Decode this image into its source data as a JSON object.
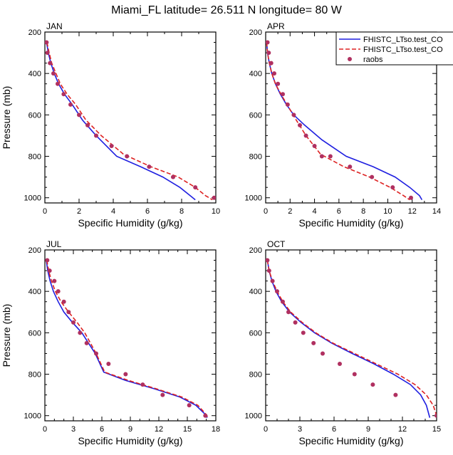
{
  "figure": {
    "title": "Miami_FL  latitude= 26.511 N longitude= 80 W",
    "ylabel": "Pressure (mb)",
    "xlabel": "Specific Humidity (g/kg)"
  },
  "legend": {
    "placement": "top-right of APR panel",
    "entries": [
      {
        "label": "FHISTC_LTso.test_CO",
        "color": "#1f1fe0",
        "style": "solid"
      },
      {
        "label": "FHISTC_LTso.test_CO",
        "color": "#dd2222",
        "style": "dashed"
      },
      {
        "label": "raobs",
        "color": "#b03060",
        "style": "dot"
      }
    ]
  },
  "colors": {
    "blue": "#1f1fe0",
    "red": "#dd2222",
    "obs": "#b03060"
  },
  "chart_data": [
    {
      "type": "line",
      "panel": "JAN",
      "xlim": [
        0,
        10
      ],
      "xticks": [
        0,
        2,
        4,
        6,
        8,
        10
      ],
      "ylim": [
        1025,
        200
      ],
      "yticks": [
        200,
        400,
        600,
        800,
        1000
      ],
      "series": [
        {
          "name": "FHISTC_LTso.test_CO (solid)",
          "x": [
            0.1,
            0.2,
            0.35,
            0.55,
            0.8,
            1.15,
            1.6,
            2.2,
            3.0,
            4.2,
            5.6,
            6.9,
            7.9,
            8.5,
            8.8
          ],
          "y": [
            250,
            300,
            350,
            400,
            450,
            500,
            550,
            625,
            700,
            800,
            850,
            900,
            950,
            990,
            1010
          ]
        },
        {
          "name": "FHISTC_LTso.test_CO (dashed)",
          "x": [
            0.12,
            0.25,
            0.4,
            0.65,
            0.9,
            1.3,
            1.8,
            2.4,
            3.3,
            4.6,
            6.2,
            7.8,
            8.8,
            9.4,
            9.8
          ],
          "y": [
            250,
            300,
            350,
            400,
            450,
            500,
            550,
            625,
            700,
            790,
            850,
            900,
            950,
            990,
            1010
          ]
        },
        {
          "name": "raobs",
          "x": [
            0.1,
            0.15,
            0.3,
            0.5,
            0.75,
            1.1,
            1.5,
            2.0,
            2.5,
            3.0,
            3.9,
            4.8,
            6.1,
            7.5,
            8.8,
            9.9
          ],
          "y": [
            250,
            300,
            350,
            400,
            450,
            500,
            550,
            600,
            650,
            700,
            750,
            800,
            850,
            900,
            950,
            1000
          ]
        }
      ]
    },
    {
      "type": "line",
      "panel": "APR",
      "xlim": [
        0,
        14
      ],
      "xticks": [
        0,
        2,
        4,
        6,
        8,
        10,
        12,
        14
      ],
      "ylim": [
        1025,
        200
      ],
      "yticks": [
        200,
        400,
        600,
        800,
        1000
      ],
      "series": [
        {
          "name": "FHISTC_LTso.test_CO (solid)",
          "x": [
            0.08,
            0.15,
            0.3,
            0.5,
            0.8,
            1.2,
            1.7,
            2.3,
            3.2,
            4.6,
            6.6,
            8.8,
            10.6,
            11.8,
            12.6,
            12.8
          ],
          "y": [
            250,
            300,
            350,
            400,
            450,
            500,
            550,
            600,
            650,
            720,
            800,
            850,
            900,
            950,
            990,
            1010
          ]
        },
        {
          "name": "FHISTC_LTso.test_CO (dashed)",
          "x": [
            0.08,
            0.15,
            0.3,
            0.5,
            0.8,
            1.25,
            1.75,
            2.5,
            3.3,
            4.5,
            6.4,
            8.5,
            10.2,
            11.3,
            11.8
          ],
          "y": [
            250,
            300,
            350,
            400,
            450,
            500,
            550,
            625,
            700,
            790,
            850,
            900,
            950,
            990,
            1010
          ]
        },
        {
          "name": "raobs",
          "x": [
            0.15,
            0.25,
            0.45,
            0.7,
            1.0,
            1.4,
            1.8,
            2.3,
            2.8,
            3.3,
            4.0,
            4.6,
            5.3,
            6.9,
            8.7,
            10.4,
            11.9
          ],
          "y": [
            250,
            300,
            350,
            400,
            450,
            500,
            550,
            600,
            650,
            700,
            750,
            800,
            800,
            850,
            900,
            950,
            1000
          ]
        }
      ]
    },
    {
      "type": "line",
      "panel": "JUL",
      "xlim": [
        0,
        18
      ],
      "xticks": [
        0,
        3,
        6,
        9,
        12,
        15,
        18
      ],
      "ylim": [
        1025,
        200
      ],
      "yticks": [
        200,
        400,
        600,
        800,
        1000
      ],
      "series": [
        {
          "name": "FHISTC_LTso.test_CO (solid)",
          "x": [
            0.15,
            0.3,
            0.55,
            0.9,
            1.4,
            2.0,
            2.9,
            3.9,
            4.6,
            5.3,
            6.2,
            8.5,
            11.5,
            14.2,
            15.9,
            16.8,
            17.1
          ],
          "y": [
            250,
            300,
            350,
            400,
            450,
            500,
            550,
            600,
            650,
            700,
            790,
            830,
            870,
            910,
            950,
            990,
            1010
          ]
        },
        {
          "name": "FHISTC_LTso.test_CO (dashed)",
          "x": [
            0.2,
            0.4,
            0.7,
            1.1,
            1.7,
            2.5,
            3.4,
            4.2,
            4.8,
            5.4,
            6.3,
            8.8,
            11.7,
            14.4,
            16.1,
            16.9,
            17.2
          ],
          "y": [
            250,
            300,
            350,
            400,
            450,
            500,
            550,
            600,
            650,
            700,
            790,
            830,
            870,
            910,
            950,
            990,
            1010
          ]
        },
        {
          "name": "raobs",
          "x": [
            0.25,
            0.5,
            1.0,
            1.4,
            2.0,
            2.5,
            3.0,
            3.7,
            4.4,
            5.4,
            6.7,
            8.5,
            10.3,
            12.4,
            15.2,
            16.9
          ],
          "y": [
            250,
            300,
            350,
            400,
            450,
            500,
            550,
            600,
            650,
            700,
            750,
            800,
            850,
            900,
            950,
            1000
          ]
        }
      ]
    },
    {
      "type": "line",
      "panel": "OCT",
      "xlim": [
        0,
        15
      ],
      "xticks": [
        0,
        3,
        6,
        9,
        12,
        15
      ],
      "ylim": [
        1025,
        200
      ],
      "yticks": [
        200,
        400,
        600,
        800,
        1000
      ],
      "series": [
        {
          "name": "FHISTC_LTso.test_CO (solid)",
          "x": [
            0.15,
            0.3,
            0.55,
            0.9,
            1.4,
            2.1,
            3.1,
            4.3,
            5.8,
            7.6,
            9.5,
            11.2,
            12.7,
            13.6,
            14.1,
            14.4
          ],
          "y": [
            250,
            300,
            350,
            400,
            450,
            500,
            550,
            600,
            650,
            700,
            750,
            800,
            850,
            900,
            950,
            1010
          ]
        },
        {
          "name": "FHISTC_LTso.test_CO (dashed)",
          "x": [
            0.15,
            0.3,
            0.6,
            1.0,
            1.5,
            2.2,
            3.2,
            4.4,
            5.9,
            7.8,
            9.7,
            11.6,
            13.1,
            14.1,
            14.7,
            15.0
          ],
          "y": [
            250,
            300,
            350,
            400,
            450,
            500,
            550,
            600,
            650,
            700,
            750,
            800,
            850,
            900,
            950,
            1000
          ]
        },
        {
          "name": "raobs",
          "x": [
            0.15,
            0.3,
            0.6,
            1.0,
            1.5,
            2.0,
            2.6,
            3.3,
            4.2,
            5.0,
            6.5,
            7.8,
            9.4,
            11.4,
            15.0
          ],
          "y": [
            250,
            300,
            350,
            400,
            450,
            500,
            550,
            600,
            650,
            700,
            750,
            800,
            850,
            900,
            1000
          ]
        }
      ]
    }
  ]
}
